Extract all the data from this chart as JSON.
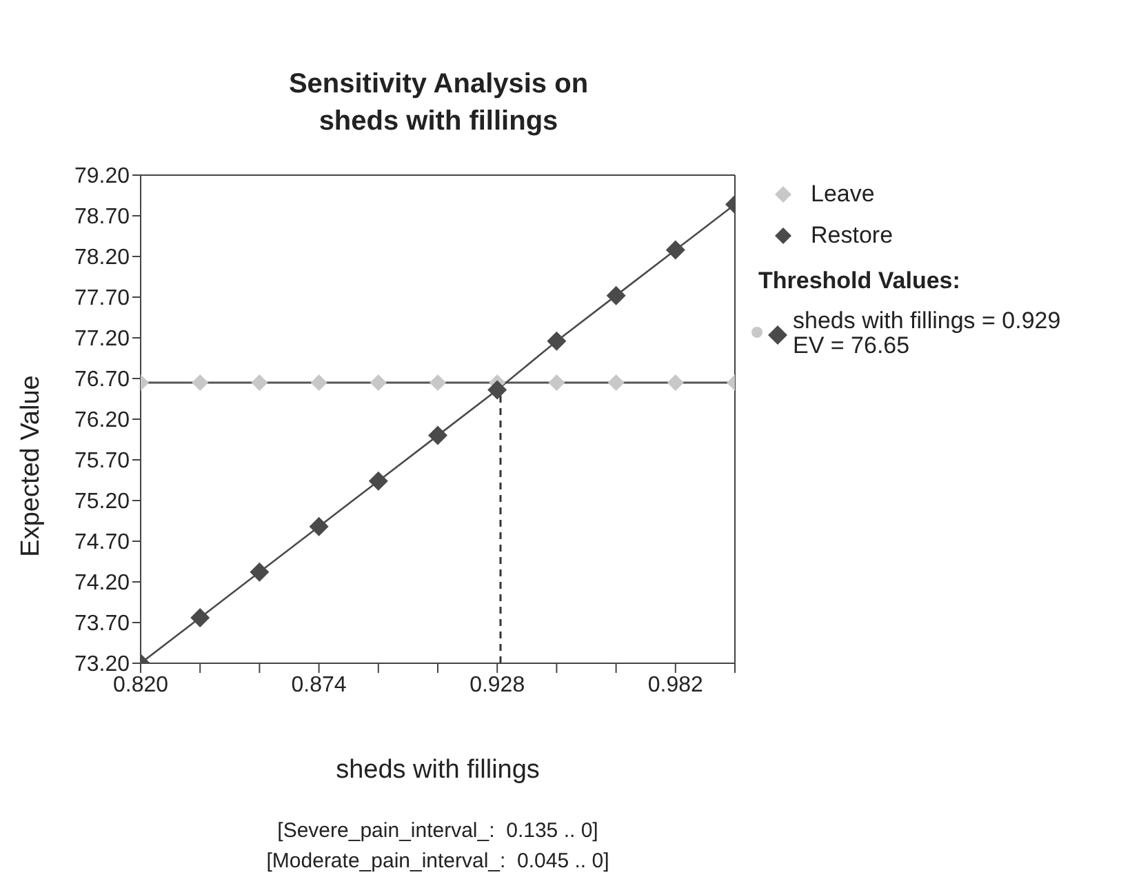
{
  "chart_data": {
    "type": "line",
    "title": "Sensitivity Analysis on sheds with fillings",
    "xlabel": "sheds with fillings",
    "ylabel": "Expected Value",
    "x": [
      0.82,
      0.838,
      0.856,
      0.874,
      0.892,
      0.91,
      0.928,
      0.946,
      0.964,
      0.982,
      1.0
    ],
    "series": [
      {
        "name": "Leave",
        "type": "scatter",
        "color": "#c8c8c8",
        "values": [
          76.65,
          76.65,
          76.65,
          76.65,
          76.65,
          76.65,
          76.65,
          76.65,
          76.65,
          76.65,
          76.65
        ]
      },
      {
        "name": "Restore",
        "color": "#4a4a4a",
        "values": [
          73.2,
          73.76,
          74.32,
          74.88,
          75.44,
          76.0,
          76.56,
          77.16,
          77.72,
          78.28,
          78.84
        ]
      }
    ],
    "xlim": [
      0.82,
      1.0
    ],
    "xticks": [
      {
        "value": 0.82,
        "label": "0.820"
      },
      {
        "value": 0.838,
        "label": null
      },
      {
        "value": 0.856,
        "label": null
      },
      {
        "value": 0.874,
        "label": "0.874"
      },
      {
        "value": 0.892,
        "label": null
      },
      {
        "value": 0.91,
        "label": null
      },
      {
        "value": 0.928,
        "label": "0.928"
      },
      {
        "value": 0.946,
        "label": null
      },
      {
        "value": 0.964,
        "label": null
      },
      {
        "value": 0.982,
        "label": "0.982"
      },
      {
        "value": 1.0,
        "label": null
      }
    ],
    "ylim": [
      73.2,
      79.2
    ],
    "yticks": [
      {
        "value": 73.2,
        "label": "73.20"
      },
      {
        "value": 73.7,
        "label": "73.70"
      },
      {
        "value": 74.2,
        "label": "74.20"
      },
      {
        "value": 74.7,
        "label": "74.70"
      },
      {
        "value": 75.2,
        "label": "75.20"
      },
      {
        "value": 75.7,
        "label": "75.70"
      },
      {
        "value": 76.2,
        "label": "76.20"
      },
      {
        "value": 76.7,
        "label": "76.70"
      },
      {
        "value": 77.2,
        "label": "77.20"
      },
      {
        "value": 77.7,
        "label": "77.70"
      },
      {
        "value": 78.2,
        "label": "78.20"
      },
      {
        "value": 78.7,
        "label": "78.70"
      },
      {
        "value": 79.2,
        "label": "79.20"
      }
    ],
    "ref_lines": [
      {
        "axis": "y",
        "value": 76.65,
        "color": "#555555",
        "line_style": "solid"
      },
      {
        "axis": "x",
        "value": 0.929,
        "color": "#333333",
        "line_style": "dashed"
      }
    ],
    "legend": "top right",
    "legend_title": "Threshold Values:",
    "marker": "diamond",
    "grid": false,
    "annotations": [
      "sheds with fillings = 0.929",
      "EV = 76.65",
      "[Severe_pain_interval_:  0.135 .. 0]",
      "[Moderate_pain_interval_:  0.045 .. 0]"
    ]
  }
}
